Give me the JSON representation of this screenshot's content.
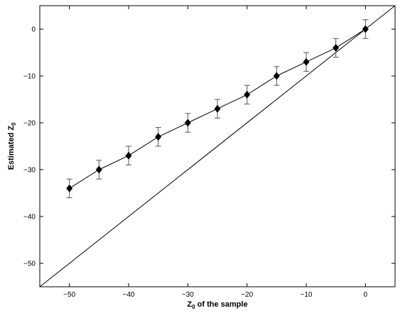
{
  "chart_data": {
    "type": "scatter",
    "title": "",
    "xlabel": "Z",
    "xlabel_sub": "0",
    "xlabel_rest": " of the sample",
    "ylabel": "Estimated Z",
    "ylabel_sub": "0",
    "xlim": [
      -55,
      5
    ],
    "ylim": [
      -55,
      5
    ],
    "xticks": [
      -50,
      -40,
      -30,
      -20,
      -10,
      0
    ],
    "yticks": [
      -50,
      -40,
      -30,
      -20,
      -10,
      0
    ],
    "grid": false,
    "legend": "none",
    "series": [
      {
        "x": [
          -50,
          -45,
          -40,
          -35,
          -30,
          -25,
          -20,
          -15,
          -10,
          -5,
          0
        ],
        "y": [
          -34,
          -30,
          -27,
          -23,
          -20,
          -17,
          -14,
          -10,
          -7,
          -4,
          0
        ],
        "err": [
          2,
          2,
          2,
          2,
          2,
          2,
          2,
          2,
          2,
          2,
          2
        ],
        "marker": "diamond",
        "line": "solid"
      }
    ],
    "reference_line": {
      "type": "identity",
      "x": [
        -55,
        5
      ],
      "y": [
        -55,
        5
      ]
    },
    "colors": {
      "line": "#000000",
      "errorbar": "#555555",
      "marker": "#000000"
    }
  }
}
